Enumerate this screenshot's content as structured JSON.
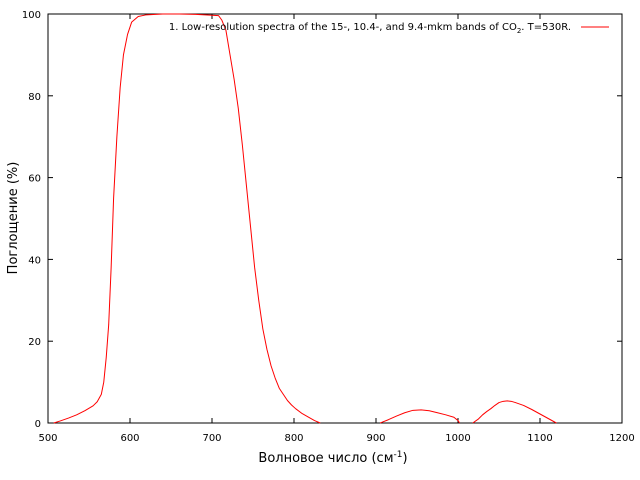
{
  "chart_data": {
    "type": "line",
    "xlabel": "Волновое число (см",
    "xlabel_sup": "-1",
    "xlabel_suffix": ")",
    "ylabel": "Поглощение (%)",
    "xlim": [
      500,
      1200
    ],
    "ylim": [
      0,
      100
    ],
    "xticks": [
      500,
      600,
      700,
      800,
      900,
      1000,
      1100,
      1200
    ],
    "yticks": [
      0,
      20,
      40,
      60,
      80,
      100
    ],
    "grid": false,
    "legend_position": "top-right",
    "series": [
      {
        "name": "1. Low-resolution spectra of the 15-, 10.4-, and 9.4-mkm bands of CO",
        "name_sub": "2",
        "name_suffix": ". T=530R.",
        "color": "#ff0000",
        "segments": [
          [
            [
              507,
              0
            ],
            [
              515,
              0.5
            ],
            [
              525,
              1.2
            ],
            [
              535,
              2.0
            ],
            [
              545,
              3.0
            ],
            [
              555,
              4.2
            ],
            [
              560,
              5.2
            ],
            [
              565,
              7.0
            ],
            [
              568,
              10
            ],
            [
              571,
              16
            ],
            [
              574,
              24
            ],
            [
              577,
              38
            ],
            [
              580,
              55
            ],
            [
              584,
              70
            ],
            [
              588,
              82
            ],
            [
              592,
              90
            ],
            [
              597,
              95
            ],
            [
              602,
              98
            ],
            [
              610,
              99.4
            ],
            [
              620,
              99.8
            ],
            [
              640,
              100
            ],
            [
              660,
              100
            ],
            [
              680,
              99.9
            ],
            [
              700,
              99.7
            ],
            [
              708,
              99.6
            ],
            [
              712,
              98.5
            ],
            [
              717,
              96
            ],
            [
              722,
              90
            ],
            [
              727,
              84
            ],
            [
              732,
              77
            ],
            [
              737,
              68
            ],
            [
              742,
              58
            ],
            [
              747,
              48
            ],
            [
              752,
              38
            ],
            [
              757,
              30
            ],
            [
              762,
              23
            ],
            [
              767,
              18
            ],
            [
              772,
              14
            ],
            [
              777,
              11
            ],
            [
              782,
              8.5
            ],
            [
              787,
              7
            ],
            [
              792,
              5.5
            ],
            [
              797,
              4.4
            ],
            [
              802,
              3.5
            ],
            [
              810,
              2.3
            ],
            [
              818,
              1.4
            ],
            [
              825,
              0.6
            ],
            [
              832,
              0
            ]
          ],
          [
            [
              905,
              0
            ],
            [
              915,
              0.8
            ],
            [
              925,
              1.7
            ],
            [
              935,
              2.5
            ],
            [
              945,
              3.1
            ],
            [
              955,
              3.2
            ],
            [
              965,
              3.0
            ],
            [
              975,
              2.5
            ],
            [
              985,
              2.0
            ],
            [
              995,
              1.4
            ],
            [
              1000,
              0.6
            ],
            [
              1002,
              0
            ]
          ],
          [
            [
              1018,
              0
            ],
            [
              1025,
              1.0
            ],
            [
              1030,
              2.0
            ],
            [
              1035,
              2.8
            ],
            [
              1040,
              3.5
            ],
            [
              1045,
              4.3
            ],
            [
              1050,
              5.0
            ],
            [
              1055,
              5.3
            ],
            [
              1060,
              5.4
            ],
            [
              1065,
              5.3
            ],
            [
              1070,
              5.0
            ],
            [
              1080,
              4.3
            ],
            [
              1090,
              3.3
            ],
            [
              1100,
              2.2
            ],
            [
              1110,
              1.1
            ],
            [
              1120,
              0
            ]
          ]
        ]
      }
    ]
  }
}
